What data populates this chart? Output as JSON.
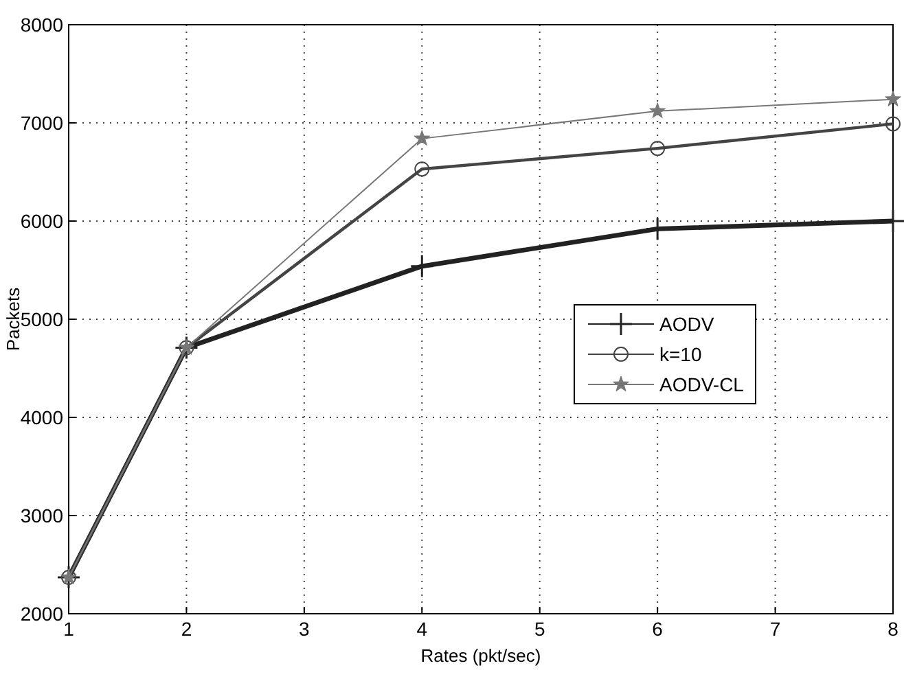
{
  "chart_data": {
    "type": "line",
    "xlabel": "Rates (pkt/sec)",
    "ylabel": "Packets",
    "x": [
      1,
      2,
      4,
      6,
      8
    ],
    "series": [
      {
        "name": "AODV",
        "color": "#222222",
        "marker": "cross",
        "values": [
          2370,
          4710,
          5540,
          5920,
          6000
        ]
      },
      {
        "name": "k=10",
        "color": "#444444",
        "marker": "circle",
        "values": [
          2370,
          4710,
          6530,
          6740,
          6990
        ]
      },
      {
        "name": "AODV-CL",
        "color": "#777777",
        "marker": "star",
        "values": [
          2370,
          4710,
          6840,
          7120,
          7240
        ]
      }
    ],
    "xlim": [
      1,
      8
    ],
    "xticks": [
      1,
      2,
      3,
      4,
      5,
      6,
      7,
      8
    ],
    "ylim": [
      2000,
      8000
    ],
    "yticks": [
      2000,
      3000,
      4000,
      5000,
      6000,
      7000,
      8000
    ],
    "grid": true,
    "legend": "right",
    "line_style": "solid"
  }
}
